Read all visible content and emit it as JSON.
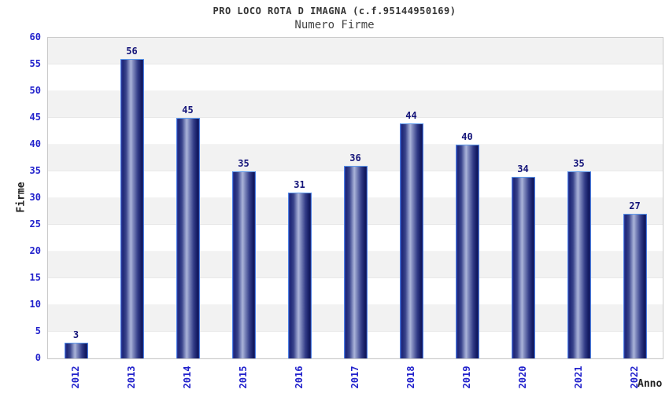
{
  "header": {
    "title": "PRO LOCO ROTA D IMAGNA (c.f.95144950169)",
    "subtitle": "Numero Firme"
  },
  "chart_data": {
    "type": "bar",
    "title": "PRO LOCO ROTA D IMAGNA (c.f.95144950169)",
    "subtitle": "Numero Firme",
    "categories": [
      "2012",
      "2013",
      "2014",
      "2015",
      "2016",
      "2017",
      "2018",
      "2019",
      "2020",
      "2021",
      "2022"
    ],
    "values": [
      3,
      56,
      45,
      35,
      31,
      36,
      44,
      40,
      34,
      35,
      27
    ],
    "xlabel": "Anno",
    "ylabel": "Firme",
    "ylim": [
      0,
      60
    ],
    "ytick_step": 5,
    "yticks": [
      0,
      5,
      10,
      15,
      20,
      25,
      30,
      35,
      40,
      45,
      50,
      55,
      60
    ],
    "grid": "alternating horizontal bands every 5 units, gray band at top (55-60)",
    "legend": "none",
    "colors": {
      "tick_label_blue": "#2222cc",
      "value_label_navy": "#15157a",
      "bar_dark": "#1a2370",
      "bar_highlight": "#aab3d8",
      "bar_border": "#5e9bee",
      "band_gray": "#f2f2f2",
      "band_white": "#ffffff",
      "plot_border": "#c9c9c9",
      "title_text": "#333333"
    }
  }
}
